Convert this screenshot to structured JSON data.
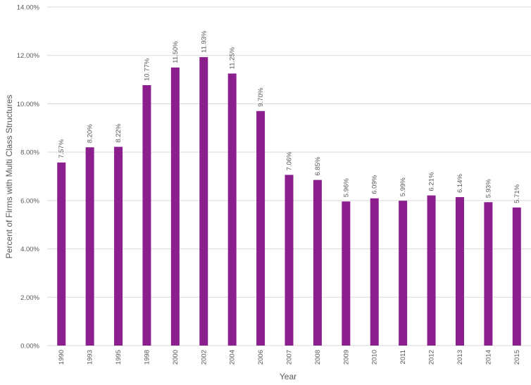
{
  "chart_data": {
    "type": "bar",
    "title": "",
    "xlabel": "Year",
    "ylabel": "Percent of Firms with Multi Class Structures",
    "categories": [
      "1990",
      "1993",
      "1995",
      "1998",
      "2000",
      "2002",
      "2004",
      "2006",
      "2007",
      "2008",
      "2009",
      "2010",
      "2011",
      "2012",
      "2013",
      "2014",
      "2015"
    ],
    "values": [
      7.57,
      8.2,
      8.22,
      10.77,
      11.5,
      11.93,
      11.25,
      9.7,
      7.06,
      6.85,
      5.96,
      6.09,
      5.99,
      6.21,
      6.14,
      5.93,
      5.71
    ],
    "value_labels": [
      "7.57%",
      "8.20%",
      "8.22%",
      "10.77%",
      "11.50%",
      "11.93%",
      "11.25%",
      "9.70%",
      "7.06%",
      "6.85%",
      "5.96%",
      "6.09%",
      "5.99%",
      "6.21%",
      "6.14%",
      "5.93%",
      "5.71%"
    ],
    "ylim": [
      0,
      14
    ],
    "y_ticks": [
      0,
      2,
      4,
      6,
      8,
      10,
      12,
      14
    ],
    "y_tick_labels": [
      "0.00%",
      "2.00%",
      "4.00%",
      "6.00%",
      "8.00%",
      "10.00%",
      "12.00%",
      "14.00%"
    ],
    "grid": true,
    "legend": "none",
    "bar_color": "#8B1F8E"
  }
}
